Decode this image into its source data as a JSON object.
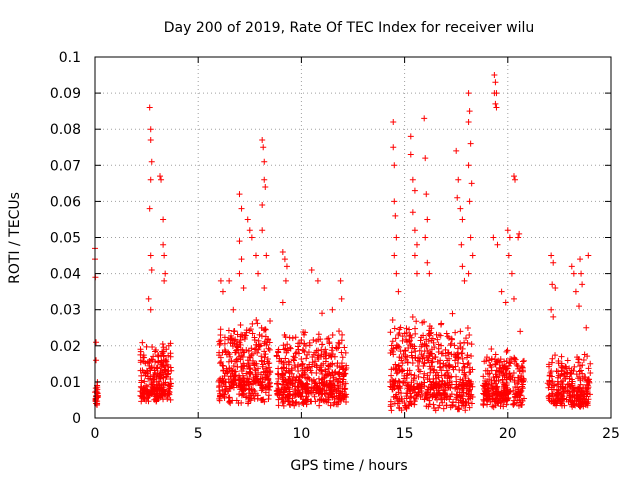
{
  "chart_data": {
    "type": "scatter",
    "title": "Day 200 of 2019, Rate Of TEC Index for receiver wilu",
    "xlabel": "GPS time / hours",
    "ylabel": "ROTI / TECUs",
    "xlim": [
      0,
      25
    ],
    "ylim": [
      0,
      0.1
    ],
    "grid": true,
    "marker": "+",
    "marker_color": "#ff0000",
    "x_ticks": [
      0,
      5,
      10,
      15,
      20,
      25
    ],
    "x_tick_labels": [
      "0",
      "5",
      "10",
      "15",
      "20",
      "25"
    ],
    "y_ticks": [
      0,
      0.01,
      0.02,
      0.03,
      0.04,
      0.05,
      0.06,
      0.07,
      0.08,
      0.09,
      0.1
    ],
    "y_tick_labels": [
      "0",
      "0.01",
      "0.02",
      "0.03",
      "0.04",
      "0.05",
      "0.06",
      "0.07",
      "0.08",
      "0.09",
      "0.1"
    ],
    "series": [
      {
        "name": "ROTI",
        "clusters": [
          {
            "x_range": [
              0.0,
              0.15
            ],
            "y_range": [
              0.003,
              0.012
            ],
            "count": 25
          },
          {
            "x_range": [
              2.2,
              3.7
            ],
            "y_range": [
              0.004,
              0.022
            ],
            "count": 260
          },
          {
            "x_range": [
              6.0,
              8.5
            ],
            "y_range": [
              0.004,
              0.028
            ],
            "count": 380
          },
          {
            "x_range": [
              8.8,
              12.2
            ],
            "y_range": [
              0.003,
              0.025
            ],
            "count": 520
          },
          {
            "x_range": [
              14.3,
              18.3
            ],
            "y_range": [
              0.002,
              0.03
            ],
            "count": 560
          },
          {
            "x_range": [
              18.8,
              20.8
            ],
            "y_range": [
              0.003,
              0.02
            ],
            "count": 280
          },
          {
            "x_range": [
              21.9,
              24.0
            ],
            "y_range": [
              0.003,
              0.018
            ],
            "count": 260
          }
        ],
        "points": [
          [
            0.0,
            0.047
          ],
          [
            0.0,
            0.044
          ],
          [
            0.02,
            0.039
          ],
          [
            0.05,
            0.021
          ],
          [
            0.05,
            0.016
          ],
          [
            0.1,
            0.009
          ],
          [
            0.05,
            0.004
          ],
          [
            2.65,
            0.086
          ],
          [
            2.7,
            0.08
          ],
          [
            2.7,
            0.077
          ],
          [
            2.75,
            0.071
          ],
          [
            2.7,
            0.066
          ],
          [
            2.65,
            0.058
          ],
          [
            2.7,
            0.045
          ],
          [
            2.75,
            0.041
          ],
          [
            2.6,
            0.033
          ],
          [
            2.7,
            0.03
          ],
          [
            3.15,
            0.067
          ],
          [
            3.2,
            0.066
          ],
          [
            3.3,
            0.055
          ],
          [
            3.3,
            0.048
          ],
          [
            3.35,
            0.045
          ],
          [
            3.4,
            0.04
          ],
          [
            3.35,
            0.038
          ],
          [
            6.1,
            0.038
          ],
          [
            6.2,
            0.035
          ],
          [
            6.5,
            0.038
          ],
          [
            6.7,
            0.03
          ],
          [
            7.0,
            0.062
          ],
          [
            7.1,
            0.058
          ],
          [
            7.0,
            0.049
          ],
          [
            7.1,
            0.044
          ],
          [
            7.0,
            0.04
          ],
          [
            7.2,
            0.036
          ],
          [
            7.4,
            0.055
          ],
          [
            7.5,
            0.052
          ],
          [
            7.6,
            0.05
          ],
          [
            7.8,
            0.045
          ],
          [
            7.9,
            0.04
          ],
          [
            8.1,
            0.077
          ],
          [
            8.15,
            0.075
          ],
          [
            8.2,
            0.071
          ],
          [
            8.2,
            0.066
          ],
          [
            8.25,
            0.064
          ],
          [
            8.1,
            0.059
          ],
          [
            8.1,
            0.052
          ],
          [
            8.3,
            0.045
          ],
          [
            8.2,
            0.036
          ],
          [
            9.1,
            0.046
          ],
          [
            9.2,
            0.044
          ],
          [
            9.3,
            0.042
          ],
          [
            9.25,
            0.038
          ],
          [
            9.1,
            0.032
          ],
          [
            10.5,
            0.041
          ],
          [
            10.8,
            0.038
          ],
          [
            11.0,
            0.029
          ],
          [
            11.5,
            0.03
          ],
          [
            11.9,
            0.038
          ],
          [
            11.95,
            0.033
          ],
          [
            14.45,
            0.082
          ],
          [
            14.45,
            0.075
          ],
          [
            14.5,
            0.07
          ],
          [
            14.5,
            0.06
          ],
          [
            14.55,
            0.056
          ],
          [
            14.6,
            0.05
          ],
          [
            14.5,
            0.045
          ],
          [
            14.6,
            0.04
          ],
          [
            14.7,
            0.035
          ],
          [
            15.3,
            0.078
          ],
          [
            15.3,
            0.073
          ],
          [
            15.4,
            0.066
          ],
          [
            15.5,
            0.063
          ],
          [
            15.4,
            0.057
          ],
          [
            15.5,
            0.052
          ],
          [
            15.6,
            0.048
          ],
          [
            15.5,
            0.045
          ],
          [
            15.6,
            0.04
          ],
          [
            15.95,
            0.083
          ],
          [
            16.0,
            0.072
          ],
          [
            16.05,
            0.062
          ],
          [
            16.1,
            0.055
          ],
          [
            16.0,
            0.05
          ],
          [
            16.1,
            0.043
          ],
          [
            16.2,
            0.04
          ],
          [
            17.5,
            0.074
          ],
          [
            17.6,
            0.066
          ],
          [
            17.55,
            0.061
          ],
          [
            17.7,
            0.058
          ],
          [
            17.8,
            0.055
          ],
          [
            17.75,
            0.048
          ],
          [
            17.8,
            0.042
          ],
          [
            17.9,
            0.038
          ],
          [
            18.1,
            0.09
          ],
          [
            18.15,
            0.085
          ],
          [
            18.1,
            0.082
          ],
          [
            18.2,
            0.076
          ],
          [
            18.1,
            0.07
          ],
          [
            18.25,
            0.065
          ],
          [
            18.15,
            0.06
          ],
          [
            18.2,
            0.05
          ],
          [
            18.3,
            0.045
          ],
          [
            18.1,
            0.04
          ],
          [
            19.35,
            0.095
          ],
          [
            19.4,
            0.093
          ],
          [
            19.35,
            0.09
          ],
          [
            19.45,
            0.09
          ],
          [
            19.4,
            0.087
          ],
          [
            19.45,
            0.086
          ],
          [
            19.3,
            0.05
          ],
          [
            19.5,
            0.048
          ],
          [
            19.7,
            0.035
          ],
          [
            19.9,
            0.032
          ],
          [
            20.0,
            0.052
          ],
          [
            20.1,
            0.05
          ],
          [
            20.05,
            0.045
          ],
          [
            20.2,
            0.04
          ],
          [
            20.3,
            0.033
          ],
          [
            20.3,
            0.067
          ],
          [
            20.35,
            0.066
          ],
          [
            20.55,
            0.051
          ],
          [
            20.5,
            0.05
          ],
          [
            20.6,
            0.024
          ],
          [
            22.1,
            0.045
          ],
          [
            22.2,
            0.043
          ],
          [
            22.15,
            0.037
          ],
          [
            22.3,
            0.036
          ],
          [
            22.1,
            0.03
          ],
          [
            22.2,
            0.028
          ],
          [
            23.1,
            0.042
          ],
          [
            23.2,
            0.04
          ],
          [
            23.3,
            0.035
          ],
          [
            23.5,
            0.044
          ],
          [
            23.55,
            0.04
          ],
          [
            23.6,
            0.037
          ],
          [
            23.45,
            0.031
          ],
          [
            23.9,
            0.045
          ],
          [
            23.8,
            0.025
          ]
        ]
      }
    ]
  }
}
